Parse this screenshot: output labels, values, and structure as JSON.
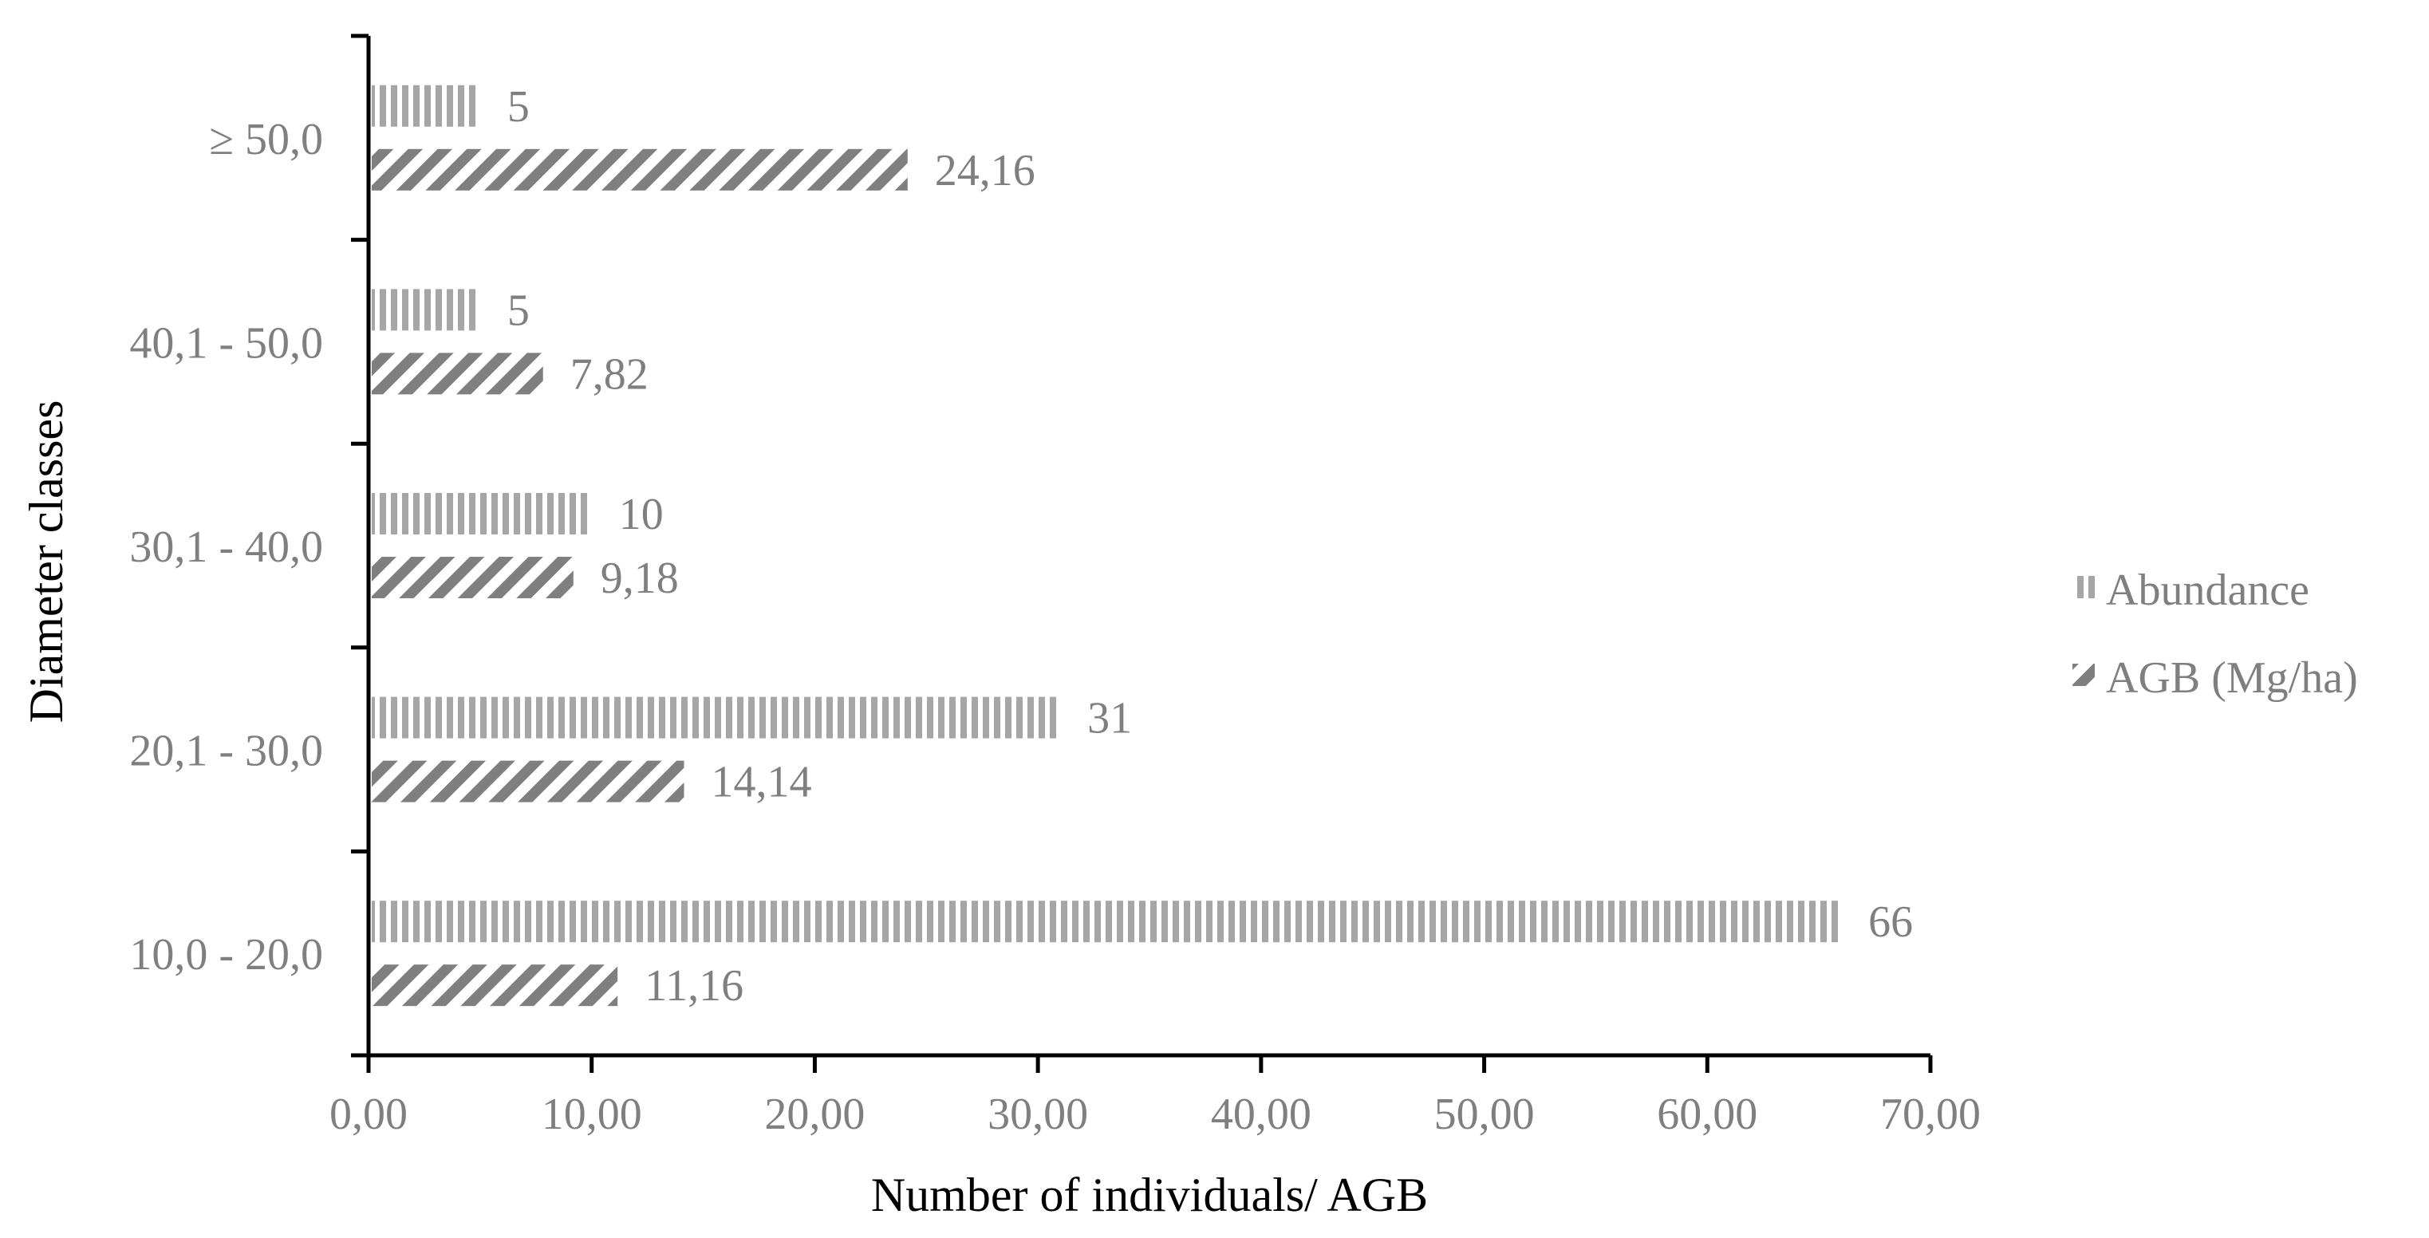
{
  "chart_data": {
    "type": "bar",
    "orientation": "horizontal",
    "categories": [
      "10,0 - 20,0",
      "20,1 - 30,0",
      "30,1 - 40,0",
      "40,1 - 50,0",
      "≥ 50,0"
    ],
    "series": [
      {
        "name": "Abundance",
        "values": [
          66,
          31,
          10,
          5,
          5
        ],
        "value_labels": [
          "66",
          "31",
          "10",
          "5",
          "5"
        ],
        "color": "#a6a6a6",
        "pattern": "vertical-stripes"
      },
      {
        "name": "AGB (Mg/ha)",
        "values": [
          11.16,
          14.14,
          9.18,
          7.82,
          24.16
        ],
        "value_labels": [
          "11,16",
          "14,14",
          "9,18",
          "7,82",
          "24,16"
        ],
        "color": "#7f7f7f",
        "pattern": "diagonal-stripes"
      }
    ],
    "xlabel": "Number of individuals/ AGB",
    "ylabel": "Diameter classes",
    "xlim": [
      0,
      70
    ],
    "x_ticks": [
      0,
      10,
      20,
      30,
      40,
      50,
      60,
      70
    ],
    "x_tick_labels": [
      "0,00",
      "10,00",
      "20,00",
      "30,00",
      "40,00",
      "50,00",
      "60,00",
      "70,00"
    ],
    "grid": false,
    "legend": {
      "position": "right"
    }
  }
}
